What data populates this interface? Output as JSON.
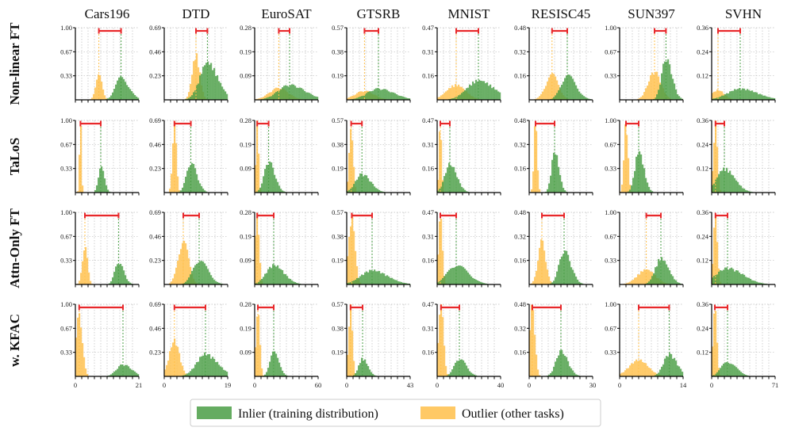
{
  "chart_data": {
    "type": "histogram-grid",
    "datasets": [
      "Cars196",
      "DTD",
      "EuroSAT",
      "GTSRB",
      "MNIST",
      "RESISC45",
      "SUN397",
      "SVHN"
    ],
    "methods": [
      "Non-linear FT",
      "TaLoS",
      "Attn-Only FT",
      "w. KFAC"
    ],
    "y_ticks": [
      [
        "1.00",
        "0.67",
        "0.33"
      ],
      [
        "0.69",
        "0.46",
        "0.23"
      ],
      [
        "0.28",
        "0.19",
        "0.09"
      ],
      [
        "0.57",
        "0.38",
        "0.19"
      ],
      [
        "0.47",
        "0.31",
        "0.16"
      ],
      [
        "0.48",
        "0.32",
        "0.16"
      ],
      [
        "1.00",
        "0.67",
        "0.33"
      ],
      [
        "0.36",
        "0.24",
        "0.12"
      ]
    ],
    "x_max": [
      21,
      19,
      60,
      43,
      40,
      30,
      14,
      71
    ],
    "x_max_labels": [
      "21",
      "19",
      "60",
      "43",
      "40",
      "30",
      "14",
      "71"
    ],
    "x_zero_label": "0",
    "panels": [
      [
        {
          "inlier": {
            "mean": 0.72,
            "sd": 0.09,
            "peak": 0.3
          },
          "outlier": {
            "mean": 0.37,
            "sd": 0.05,
            "peak": 0.33
          }
        },
        {
          "inlier": {
            "mean": 0.68,
            "sd": 0.12,
            "peak": 0.5
          },
          "outlier": {
            "mean": 0.5,
            "sd": 0.06,
            "peak": 0.6
          }
        },
        {
          "inlier": {
            "mean": 0.55,
            "sd": 0.18,
            "peak": 0.2
          },
          "outlier": {
            "mean": 0.38,
            "sd": 0.15,
            "peak": 0.16
          }
        },
        {
          "inlier": {
            "mean": 0.5,
            "sd": 0.18,
            "peak": 0.15
          },
          "outlier": {
            "mean": 0.28,
            "sd": 0.15,
            "peak": 0.12
          }
        },
        {
          "inlier": {
            "mean": 0.65,
            "sd": 0.18,
            "peak": 0.26
          },
          "outlier": {
            "mean": 0.3,
            "sd": 0.15,
            "peak": 0.2
          }
        },
        {
          "inlier": {
            "mean": 0.6,
            "sd": 0.1,
            "peak": 0.33
          },
          "outlier": {
            "mean": 0.36,
            "sd": 0.1,
            "peak": 0.34
          }
        },
        {
          "inlier": {
            "mean": 0.73,
            "sd": 0.07,
            "peak": 0.55
          },
          "outlier": {
            "mean": 0.55,
            "sd": 0.1,
            "peak": 0.38
          }
        },
        {
          "inlier": {
            "mean": 0.45,
            "sd": 0.2,
            "peak": 0.15
          },
          "outlier": {
            "mean": 0.1,
            "sd": 0.1,
            "peak": 0.13
          }
        }
      ],
      [
        {
          "inlier": {
            "mean": 0.4,
            "sd": 0.04,
            "peak": 0.35
          },
          "outlier": {
            "mean": 0.08,
            "sd": 0.015,
            "peak": 0.95
          }
        },
        {
          "inlier": {
            "mean": 0.42,
            "sd": 0.07,
            "peak": 0.4
          },
          "outlier": {
            "mean": 0.16,
            "sd": 0.03,
            "peak": 0.95
          }
        },
        {
          "inlier": {
            "mean": 0.22,
            "sd": 0.07,
            "peak": 0.42
          },
          "outlier": {
            "mean": 0.04,
            "sd": 0.02,
            "peak": 0.95
          }
        },
        {
          "inlier": {
            "mean": 0.24,
            "sd": 0.1,
            "peak": 0.25
          },
          "outlier": {
            "mean": 0.07,
            "sd": 0.03,
            "peak": 0.9
          }
        },
        {
          "inlier": {
            "mean": 0.2,
            "sd": 0.08,
            "peak": 0.38
          },
          "outlier": {
            "mean": 0.05,
            "sd": 0.02,
            "peak": 0.95
          }
        },
        {
          "inlier": {
            "mean": 0.4,
            "sd": 0.05,
            "peak": 0.55
          },
          "outlier": {
            "mean": 0.1,
            "sd": 0.025,
            "peak": 0.95
          }
        },
        {
          "inlier": {
            "mean": 0.3,
            "sd": 0.06,
            "peak": 0.55
          },
          "outlier": {
            "mean": 0.1,
            "sd": 0.03,
            "peak": 0.95
          }
        },
        {
          "inlier": {
            "mean": 0.2,
            "sd": 0.12,
            "peak": 0.32
          },
          "outlier": {
            "mean": 0.06,
            "sd": 0.03,
            "peak": 0.95
          }
        }
      ],
      [
        {
          "inlier": {
            "mean": 0.68,
            "sd": 0.06,
            "peak": 0.3
          },
          "outlier": {
            "mean": 0.15,
            "sd": 0.04,
            "peak": 0.52
          }
        },
        {
          "inlier": {
            "mean": 0.55,
            "sd": 0.1,
            "peak": 0.33
          },
          "outlier": {
            "mean": 0.3,
            "sd": 0.08,
            "peak": 0.6
          }
        },
        {
          "inlier": {
            "mean": 0.3,
            "sd": 0.12,
            "peak": 0.26
          },
          "outlier": {
            "mean": 0.04,
            "sd": 0.03,
            "peak": 0.95
          }
        },
        {
          "inlier": {
            "mean": 0.4,
            "sd": 0.18,
            "peak": 0.19
          },
          "outlier": {
            "mean": 0.08,
            "sd": 0.05,
            "peak": 0.9
          }
        },
        {
          "inlier": {
            "mean": 0.3,
            "sd": 0.14,
            "peak": 0.26
          },
          "outlier": {
            "mean": 0.05,
            "sd": 0.03,
            "peak": 0.95
          }
        },
        {
          "inlier": {
            "mean": 0.55,
            "sd": 0.08,
            "peak": 0.45
          },
          "outlier": {
            "mean": 0.2,
            "sd": 0.06,
            "peak": 0.58
          }
        },
        {
          "inlier": {
            "mean": 0.65,
            "sd": 0.09,
            "peak": 0.35
          },
          "outlier": {
            "mean": 0.42,
            "sd": 0.14,
            "peak": 0.2
          }
        },
        {
          "inlier": {
            "mean": 0.25,
            "sd": 0.18,
            "peak": 0.22
          },
          "outlier": {
            "mean": 0.06,
            "sd": 0.03,
            "peak": 0.95
          }
        }
      ],
      [
        {
          "inlier": {
            "mean": 0.75,
            "sd": 0.1,
            "peak": 0.16
          },
          "outlier": {
            "mean": 0.06,
            "sd": 0.05,
            "peak": 0.82
          }
        },
        {
          "inlier": {
            "mean": 0.65,
            "sd": 0.14,
            "peak": 0.3
          },
          "outlier": {
            "mean": 0.16,
            "sd": 0.08,
            "peak": 0.48
          }
        },
        {
          "inlier": {
            "mean": 0.3,
            "sd": 0.06,
            "peak": 0.32
          },
          "outlier": {
            "mean": 0.05,
            "sd": 0.03,
            "peak": 0.95
          }
        },
        {
          "inlier": {
            "mean": 0.25,
            "sd": 0.06,
            "peak": 0.24
          },
          "outlier": {
            "mean": 0.06,
            "sd": 0.03,
            "peak": 0.95
          }
        },
        {
          "inlier": {
            "mean": 0.35,
            "sd": 0.08,
            "peak": 0.24
          },
          "outlier": {
            "mean": 0.06,
            "sd": 0.04,
            "peak": 0.95
          }
        },
        {
          "inlier": {
            "mean": 0.5,
            "sd": 0.08,
            "peak": 0.34
          },
          "outlier": {
            "mean": 0.05,
            "sd": 0.04,
            "peak": 0.95
          }
        },
        {
          "inlier": {
            "mean": 0.78,
            "sd": 0.09,
            "peak": 0.3
          },
          "outlier": {
            "mean": 0.3,
            "sd": 0.15,
            "peak": 0.22
          }
        },
        {
          "inlier": {
            "mean": 0.25,
            "sd": 0.1,
            "peak": 0.2
          },
          "outlier": {
            "mean": 0.05,
            "sd": 0.03,
            "peak": 0.95
          }
        }
      ]
    ],
    "legend": {
      "inlier": "Inlier (training distribution)",
      "outlier": "Outlier (other tasks)"
    },
    "colors": {
      "inlier": "#4a9e45",
      "outlier": "#ffbf4a",
      "bracket": "#e8282b"
    }
  }
}
